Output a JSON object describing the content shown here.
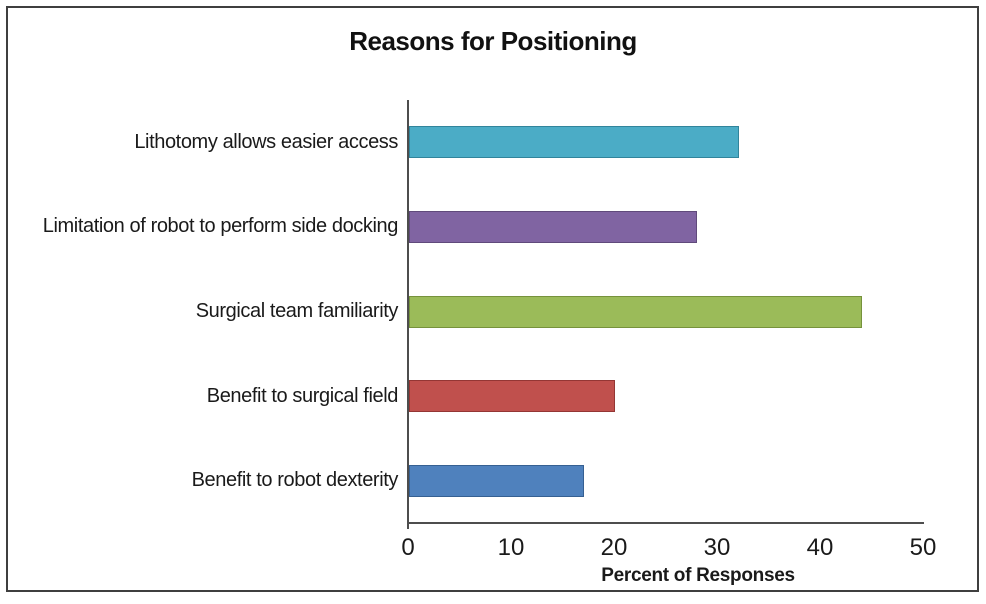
{
  "chart_data": {
    "type": "bar",
    "orientation": "horizontal",
    "title": "Reasons for Positioning",
    "xlabel": "Percent of Responses",
    "categories": [
      "Lithotomy allows easier access",
      "Limitation of robot to perform side docking",
      "Surgical team familiarity",
      "Benefit to surgical field",
      "Benefit to robot dexterity"
    ],
    "values": [
      32,
      28,
      44,
      20,
      17
    ],
    "xlim": [
      0,
      50
    ],
    "xticks": [
      0,
      10,
      20,
      30,
      40,
      50
    ],
    "bar_colors": [
      "#4BACC6",
      "#8064A2",
      "#9BBB59",
      "#C0504D",
      "#4F81BD"
    ],
    "bar_border_colors": [
      "#31849B",
      "#604A7B",
      "#76923C",
      "#943634",
      "#366092"
    ],
    "axis_color": "#4d4d4d",
    "frame_color": "#3f3f3f",
    "grid": false,
    "legend_position": "none"
  }
}
